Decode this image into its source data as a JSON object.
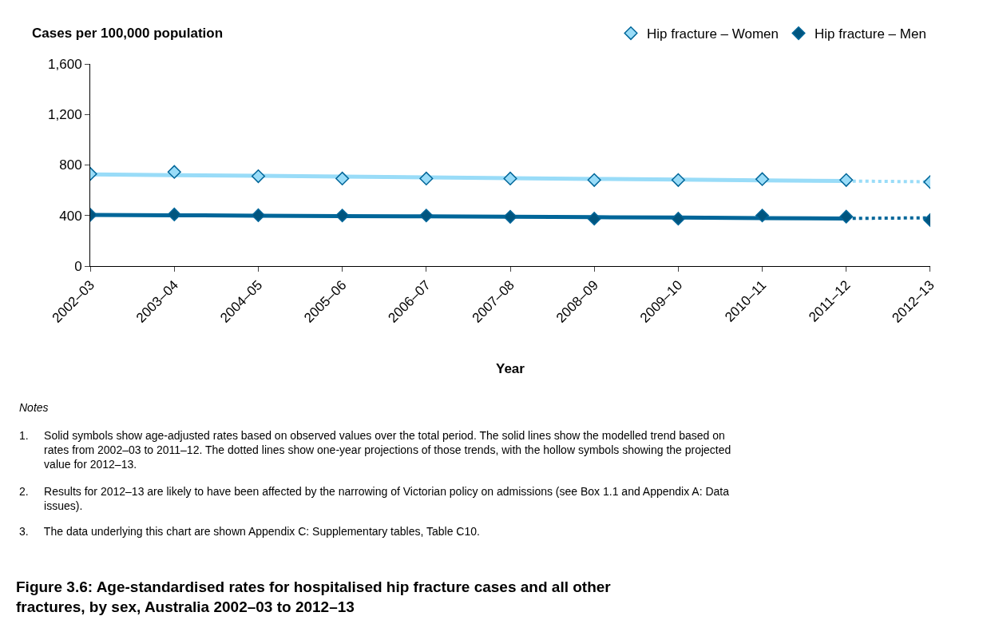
{
  "chart_data": {
    "type": "scatter",
    "title": "Figure 3.6: Age-standardised rates for hospitalised hip fracture cases and all other fractures, by sex, Australia 2002–03 to 2012–13",
    "ylabel": "Cases per 100,000 population",
    "xlabel": "Year",
    "categories": [
      "2002–03",
      "2003–04",
      "2004–05",
      "2005–06",
      "2006–07",
      "2007–08",
      "2008–09",
      "2009–10",
      "2010–11",
      "2011–12",
      "2012–13"
    ],
    "series": [
      {
        "name": "Hip fracture – Women",
        "marker": "diamond",
        "color": "#99dcf8",
        "values": [
          729,
          745,
          711,
          693,
          693,
          693,
          681,
          681,
          688,
          681,
          665
        ]
      },
      {
        "type": "line",
        "line_style": "solid",
        "marker": "none",
        "color": "#99dcf8",
        "values": [
          726,
          720,
          714,
          708,
          702,
          696,
          690,
          684,
          679,
          673,
          null
        ]
      },
      {
        "type": "line",
        "line_style": "dotted",
        "marker": "none",
        "color": "#99dcf8",
        "values": [
          null,
          null,
          null,
          null,
          null,
          null,
          null,
          null,
          null,
          673,
          667
        ]
      },
      {
        "name": "Hip fracture – Men",
        "marker": "diamond",
        "color": "#00557f",
        "values": [
          405,
          408,
          402,
          400,
          400,
          390,
          375,
          375,
          400,
          391,
          364
        ]
      },
      {
        "type": "line",
        "line_style": "solid",
        "marker": "none",
        "color": "#006699",
        "values": [
          405,
          402,
          399,
          396,
          393,
          390,
          387,
          384,
          380,
          377,
          null
        ]
      },
      {
        "type": "line",
        "line_style": "dotted",
        "marker": "none",
        "color": "#006699",
        "values": [
          null,
          null,
          null,
          null,
          null,
          null,
          null,
          null,
          null,
          377,
          382
        ]
      }
    ],
    "ylim": [
      0,
      1600
    ],
    "yticks": [
      0,
      {
        "value": 400,
        "label": "400"
      },
      {
        "value": 800,
        "label": "800"
      },
      {
        "value": 1200,
        "label": "1,200"
      },
      {
        "value": 1600,
        "label": "1,600"
      }
    ],
    "legend": "top right",
    "annotations": [
      "Notes",
      "1. Solid symbols show age-adjusted rates based on observed values over the total period. The solid lines show the modelled trend based on rates from 2002–03 to 2011–12. The dotted lines show one-year projections of those trends, with the hollow symbols showing the projected value for 2012–13.",
      "2. Results for 2012–13 are likely to have been affected by the narrowing of Victorian policy on admissions (see Box 1.1 and Appendix A: Data issues).",
      "3. The data underlying this chart are shown Appendix C: Supplementary tables, Table C10."
    ]
  }
}
